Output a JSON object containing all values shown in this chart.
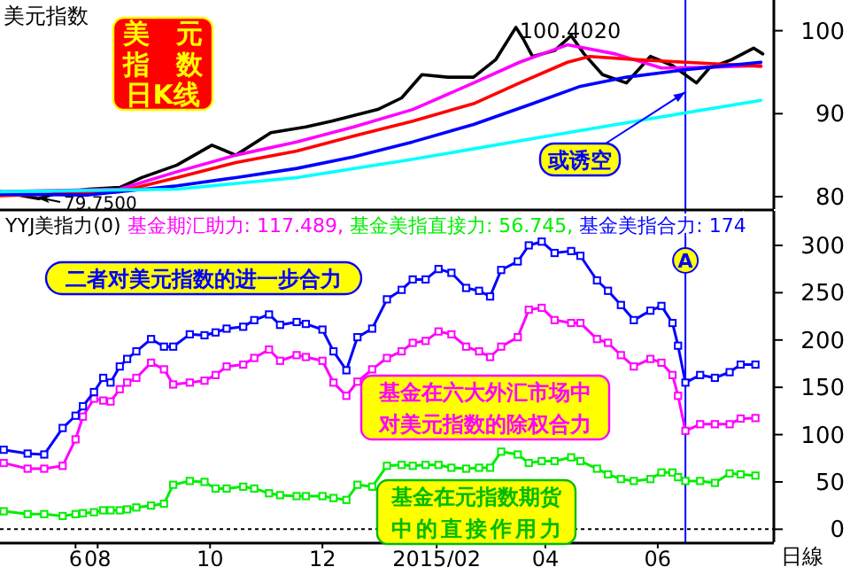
{
  "chart_data": [
    {
      "type": "line",
      "title": "美元指数",
      "xlim": [
        "2014-06-09",
        "2015-08-03"
      ],
      "ylim": [
        78.5,
        103.7
      ],
      "yticks": [
        80,
        90,
        100
      ],
      "tick_labels": "y",
      "series": [
        {
          "color": "#000000",
          "x": [
            "2014-06-09",
            "2014-06-30",
            "2014-07-11",
            "2014-07-27",
            "2014-08-13",
            "2014-08-25",
            "2014-09-13",
            "2014-10-02",
            "2014-10-15",
            "2014-11-03",
            "2014-11-22",
            "2014-12-06",
            "2014-12-31",
            "2015-01-13",
            "2015-01-24",
            "2015-02-07",
            "2015-02-21",
            "2015-03-05",
            "2015-03-16",
            "2015-03-20",
            "2015-03-25",
            "2015-04-06",
            "2015-04-15",
            "2015-04-22",
            "2015-05-02",
            "2015-05-15",
            "2015-05-28",
            "2015-06-09",
            "2015-06-22",
            "2015-06-29",
            "2015-07-11",
            "2015-07-23",
            "2015-07-28"
          ],
          "values": [
            80.6,
            79.75,
            80.5,
            80.9,
            81.1,
            82.3,
            83.8,
            86.2,
            85.0,
            87.7,
            88.4,
            89.1,
            90.5,
            91.9,
            94.7,
            94.4,
            94.4,
            96.5,
            100.402,
            99.0,
            96.9,
            97.6,
            99.4,
            97.2,
            94.7,
            93.7,
            96.9,
            95.8,
            93.7,
            95.5,
            96.5,
            97.9,
            97.2
          ]
        },
        {
          "color": "#ff00ff",
          "x": [
            "2014-06-09",
            "2014-08-13",
            "2014-09-13",
            "2014-10-15",
            "2014-11-17",
            "2014-12-18",
            "2015-01-19",
            "2015-02-21",
            "2015-03-18",
            "2015-04-13",
            "2015-05-09",
            "2015-06-03",
            "2015-06-29",
            "2015-07-27"
          ],
          "values": [
            80.6,
            80.9,
            83.0,
            85.0,
            86.6,
            88.4,
            90.5,
            93.7,
            96.2,
            98.3,
            97.2,
            95.5,
            95.6,
            95.8
          ]
        },
        {
          "color": "#ff0000",
          "x": [
            "2014-06-09",
            "2014-08-13",
            "2014-09-13",
            "2014-10-15",
            "2014-11-17",
            "2014-12-18",
            "2015-01-19",
            "2015-02-21",
            "2015-03-18",
            "2015-04-13",
            "2015-04-25",
            "2015-05-21",
            "2015-06-16",
            "2015-07-27"
          ],
          "values": [
            80.1,
            80.6,
            82.3,
            84.1,
            85.5,
            87.3,
            89.1,
            91.2,
            93.7,
            96.2,
            96.9,
            96.5,
            96.2,
            95.7
          ]
        },
        {
          "color": "#0000ff",
          "x": [
            "2014-06-09",
            "2014-07-27",
            "2014-09-13",
            "2014-10-15",
            "2014-11-17",
            "2014-12-18",
            "2015-01-19",
            "2015-02-21",
            "2015-03-25",
            "2015-04-20",
            "2015-05-15",
            "2015-06-16",
            "2015-07-27"
          ],
          "values": [
            80.3,
            80.2,
            81.3,
            82.3,
            83.4,
            84.8,
            86.6,
            88.7,
            91.2,
            93.3,
            94.4,
            95.3,
            96.2
          ]
        },
        {
          "color": "#00ffff",
          "x": [
            "2014-06-09",
            "2014-09-13",
            "2014-11-17",
            "2015-01-19",
            "2015-03-25",
            "2015-05-28",
            "2015-07-27"
          ],
          "values": [
            80.6,
            80.9,
            82.3,
            84.5,
            87.0,
            89.4,
            91.6
          ]
        }
      ],
      "annotations": [
        "美元指数日K线",
        {
          "text": "100.4020",
          "x": "2015-03-16",
          "y": 100.402
        },
        {
          "text": "79.7500",
          "x": "2014-06-30",
          "y": 79.75
        },
        {
          "text": "或诱空",
          "x": "2015-06-16",
          "y": 92.6
        }
      ],
      "ref_lines": [
        {
          "axis": "x",
          "value": "2015-06-16",
          "color": "#0000ff"
        }
      ]
    },
    {
      "type": "line",
      "legend_title": "YYJ美指力(0)",
      "legend": "top",
      "marker": "square",
      "xlim": [
        "2014-06-09",
        "2015-08-03"
      ],
      "ylim": [
        -13.7,
        336.5
      ],
      "yticks": [
        0,
        50,
        100,
        150,
        200,
        250,
        300
      ],
      "xticks": [
        {
          "value": "2014-07-20",
          "label": "6"
        },
        {
          "value": "2014-08-01",
          "label": "08"
        },
        {
          "value": "2014-10-01",
          "label": "10"
        },
        {
          "value": "2014-12-01",
          "label": "12"
        },
        {
          "value": "2015-02-01",
          "label": "2015/02"
        },
        {
          "value": "2015-04-01",
          "label": "04"
        },
        {
          "value": "2015-06-01",
          "label": "06"
        }
      ],
      "x": [
        "2014-06-11",
        "2014-06-24",
        "2014-07-03",
        "2014-07-13",
        "2014-07-20",
        "2014-07-24",
        "2014-07-30",
        "2014-08-04",
        "2014-08-08",
        "2014-08-13",
        "2014-08-17",
        "2014-08-22",
        "2014-08-30",
        "2014-09-06",
        "2014-09-11",
        "2014-09-20",
        "2014-09-28",
        "2014-10-04",
        "2014-10-10",
        "2014-10-19",
        "2014-10-25",
        "2014-11-02",
        "2014-11-08",
        "2014-11-17",
        "2014-11-22",
        "2014-12-01",
        "2014-12-07",
        "2014-12-14",
        "2014-12-20",
        "2014-12-28",
        "2015-01-05",
        "2015-01-13",
        "2015-01-19",
        "2015-01-26",
        "2015-02-02",
        "2015-02-09",
        "2015-02-17",
        "2015-02-24",
        "2015-03-02",
        "2015-03-08",
        "2015-03-17",
        "2015-03-23",
        "2015-03-30",
        "2015-04-06",
        "2015-04-15",
        "2015-04-20",
        "2015-04-29",
        "2015-05-05",
        "2015-05-12",
        "2015-05-19",
        "2015-05-28",
        "2015-06-03",
        "2015-06-09",
        "2015-06-12",
        "2015-06-16",
        "2015-06-24",
        "2015-07-02",
        "2015-07-10",
        "2015-07-16",
        "2015-07-24"
      ],
      "series": [
        {
          "name": "基金期汇助力: 117.489,",
          "color": "#ff00ff",
          "values": [
            70,
            64,
            64,
            67,
            95,
            119,
            138,
            136,
            135,
            148,
            155,
            160,
            176,
            169,
            153,
            155,
            157,
            163,
            172,
            174,
            181,
            190,
            178,
            184,
            182,
            178,
            155,
            141,
            156,
            169,
            181,
            188,
            197,
            199,
            209,
            206,
            193,
            188,
            182,
            193,
            203,
            232,
            234,
            221,
            218,
            218,
            201,
            197,
            184,
            172,
            180,
            176,
            163,
            141,
            104,
            111,
            111,
            111,
            117,
            117.5
          ]
        },
        {
          "name": "基金美指直接力: 56.745,",
          "color": "#00ee00",
          "values": [
            19,
            16,
            16,
            14,
            16,
            17,
            18,
            20,
            20,
            20,
            21,
            23,
            25,
            27,
            47,
            51,
            50,
            43,
            43,
            45,
            43,
            38,
            36,
            35,
            35,
            35,
            33,
            31,
            47,
            45,
            67,
            68,
            67,
            68,
            68,
            65,
            64,
            65,
            65,
            82,
            79,
            70,
            72,
            72,
            76,
            72,
            64,
            58,
            53,
            51,
            53,
            60,
            60,
            55,
            51,
            51,
            49,
            59,
            58,
            56.7
          ]
        },
        {
          "name": "基金美指合力: 174",
          "color": "#0000ff",
          "values": [
            84,
            80,
            79,
            107,
            120,
            130,
            145,
            160,
            155,
            172,
            180,
            188,
            201,
            193,
            193,
            206,
            205,
            208,
            212,
            214,
            221,
            227,
            216,
            219,
            217,
            211,
            188,
            168,
            203,
            212,
            243,
            253,
            264,
            264,
            275,
            271,
            255,
            252,
            246,
            274,
            283,
            300,
            304,
            292,
            294,
            289,
            263,
            252,
            237,
            221,
            231,
            236,
            218,
            194,
            155,
            163,
            160,
            166,
            174,
            174
          ]
        }
      ],
      "annotations": [
        "二者对美元指数的进一步合力",
        "基金在六大外汇市场中对美元指数的除权合力",
        "基金在元指数期货中的直接作用力",
        "日線"
      ],
      "ref_lines": [
        {
          "axis": "x",
          "value": "2015-06-16",
          "label": "A",
          "color": "#0000ff"
        },
        {
          "axis": "y",
          "value": 0,
          "color": "#000000",
          "line_style": "dotted"
        }
      ]
    }
  ]
}
